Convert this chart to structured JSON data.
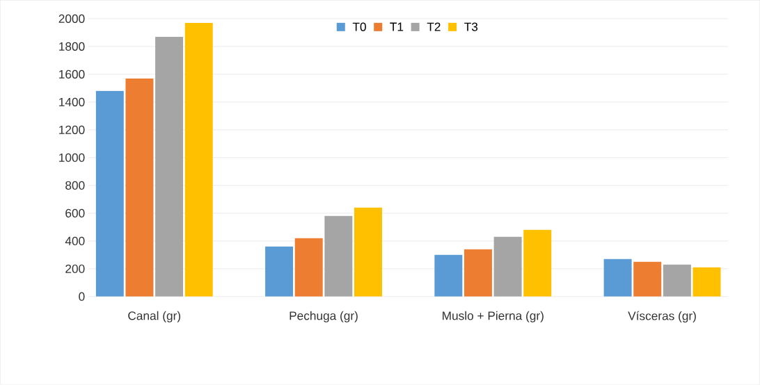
{
  "chart_data": {
    "type": "bar",
    "categories": [
      "Canal (gr)",
      "Pechuga (gr)",
      "Muslo + Pierna (gr)",
      "Vísceras (gr)"
    ],
    "series": [
      {
        "name": "T0",
        "color": "#5b9bd5",
        "values": [
          1480,
          360,
          300,
          270
        ]
      },
      {
        "name": "T1",
        "color": "#ed7d31",
        "values": [
          1570,
          420,
          340,
          250
        ]
      },
      {
        "name": "T2",
        "color": "#a5a5a5",
        "values": [
          1870,
          580,
          430,
          230
        ]
      },
      {
        "name": "T3",
        "color": "#ffc000",
        "values": [
          1970,
          640,
          480,
          210
        ]
      }
    ],
    "ylim": [
      0,
      2000
    ],
    "yticks": [
      0,
      200,
      400,
      600,
      800,
      1000,
      1200,
      1400,
      1600,
      1800,
      2000
    ],
    "grid": "y",
    "legend": "top"
  }
}
